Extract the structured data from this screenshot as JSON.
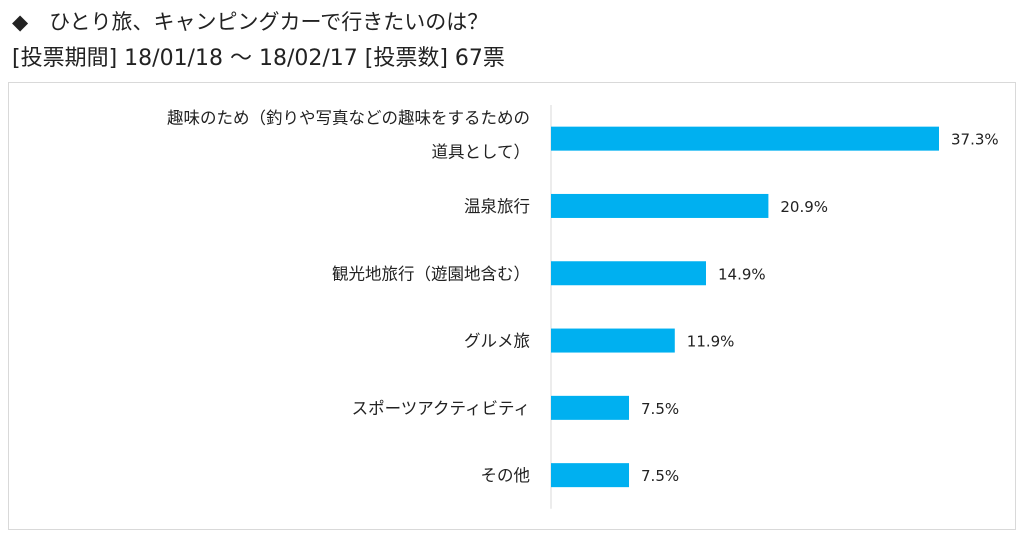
{
  "header": {
    "line1": "◆　ひとり旅、キャンピングカーで行きたいのは？",
    "line2": "[投票期間] 18/01/18 ～ 18/02/17 [投票数] 67票"
  },
  "chart_data": {
    "type": "bar",
    "orientation": "horizontal",
    "title": "ひとり旅、キャンピングカーで行きたいのは？",
    "categories": [
      [
        "趣味のため（釣りや写真などの趣味をするための",
        "道具として）"
      ],
      [
        "温泉旅行"
      ],
      [
        "観光地旅行（遊園地含む）"
      ],
      [
        "グルメ旅"
      ],
      [
        "スポーツアクティビティ"
      ],
      [
        "その他"
      ]
    ],
    "values": [
      37.3,
      20.9,
      14.9,
      11.9,
      7.5,
      7.5
    ],
    "labels": [
      "37.3%",
      "20.9%",
      "14.9%",
      "11.9%",
      "7.5%",
      "7.5%"
    ],
    "unit": "%",
    "xlim": [
      0,
      40
    ],
    "grid": false,
    "bar_color": "#00b0f0"
  }
}
